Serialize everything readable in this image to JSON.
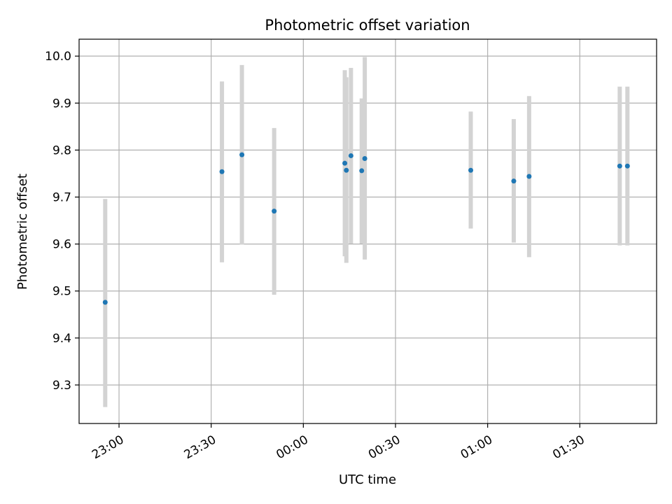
{
  "chart_data": {
    "type": "scatter",
    "title": "Photometric offset variation",
    "xlabel": "UTC time",
    "ylabel": "Photometric offset",
    "x_tick_labels": [
      "23:00",
      "23:30",
      "00:00",
      "00:30",
      "01:00",
      "01:30"
    ],
    "x_ticks": [
      "23:00",
      "23:30",
      "24:00",
      "24:30",
      "25:00",
      "25:30"
    ],
    "xlim": [
      "22:47",
      "25:55"
    ],
    "y_tick_labels": [
      "9.3",
      "9.4",
      "9.5",
      "9.6",
      "9.7",
      "9.8",
      "9.9",
      "10.0"
    ],
    "y_ticks": [
      9.3,
      9.4,
      9.5,
      9.6,
      9.7,
      9.8,
      9.9,
      10.0
    ],
    "ylim": [
      9.218,
      10.036
    ],
    "grid": true,
    "colors": {
      "point": "#1f77b4",
      "errorbar": "#d3d3d3",
      "grid": "#b0b0b0"
    },
    "points": [
      {
        "x": "22:55:30",
        "y": 9.476,
        "low": 9.253,
        "high": 9.696
      },
      {
        "x": "23:33:30",
        "y": 9.754,
        "low": 9.561,
        "high": 9.946
      },
      {
        "x": "23:40:00",
        "y": 9.79,
        "low": 9.599,
        "high": 9.981
      },
      {
        "x": "23:50:30",
        "y": 9.67,
        "low": 9.492,
        "high": 9.847
      },
      {
        "x": "00:13:30",
        "y": 9.772,
        "low": 9.574,
        "high": 9.97
      },
      {
        "x": "00:14:00",
        "y": 9.757,
        "low": 9.56,
        "high": 9.955
      },
      {
        "x": "00:15:30",
        "y": 9.788,
        "low": 9.601,
        "high": 9.975
      },
      {
        "x": "00:19:00",
        "y": 9.756,
        "low": 9.601,
        "high": 9.91
      },
      {
        "x": "00:20:00",
        "y": 9.782,
        "low": 9.567,
        "high": 9.998
      },
      {
        "x": "00:54:30",
        "y": 9.757,
        "low": 9.633,
        "high": 9.882
      },
      {
        "x": "01:08:30",
        "y": 9.734,
        "low": 9.603,
        "high": 9.866
      },
      {
        "x": "01:13:30",
        "y": 9.744,
        "low": 9.572,
        "high": 9.915
      },
      {
        "x": "01:43:00",
        "y": 9.766,
        "low": 9.597,
        "high": 9.935
      },
      {
        "x": "01:45:30",
        "y": 9.766,
        "low": 9.597,
        "high": 9.935
      }
    ]
  }
}
